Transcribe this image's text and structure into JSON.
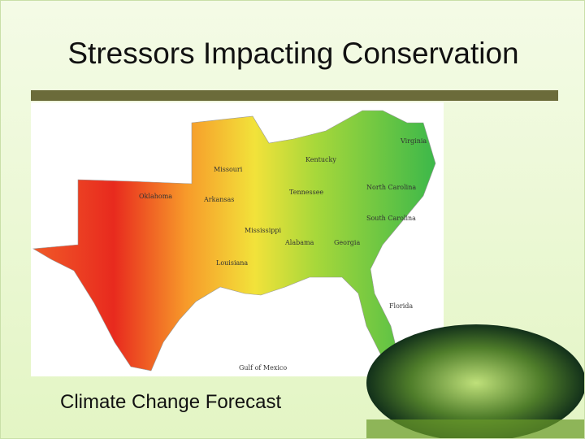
{
  "slide": {
    "title": "Stressors Impacting Conservation",
    "caption": "Climate Change Forecast",
    "map_labels": [
      {
        "text": "Missouri"
      },
      {
        "text": "Kentucky"
      },
      {
        "text": "Virginia"
      },
      {
        "text": "Oklahoma"
      },
      {
        "text": "Arkansas"
      },
      {
        "text": "Tennessee"
      },
      {
        "text": "North Carolina"
      },
      {
        "text": "South Carolina"
      },
      {
        "text": "Mississippi"
      },
      {
        "text": "Alabama"
      },
      {
        "text": "Georgia"
      },
      {
        "text": "Louisiana"
      },
      {
        "text": "Florida"
      },
      {
        "text": "Gulf of Mexico"
      }
    ]
  }
}
